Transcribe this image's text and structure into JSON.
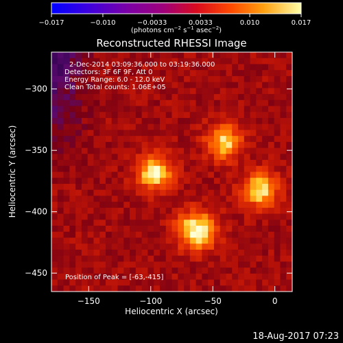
{
  "colorbar": {
    "ticks": [
      "−0.017",
      "−0.010",
      "−0.0033",
      "0.0033",
      "0.010",
      "0.017"
    ],
    "tick_values": [
      -0.017,
      -0.01,
      -0.0033,
      0.0033,
      0.01,
      0.017
    ],
    "range": [
      -0.017,
      0.017
    ],
    "units_main": "(photons cm",
    "units_exp1": "−2",
    "units_mid": " s",
    "units_exp2": "−1",
    "units_tail": " asec",
    "units_exp3": "−2",
    "units_close": ")"
  },
  "chart_data": {
    "type": "heatmap",
    "title": "Reconstructed RHESSI Image",
    "xlabel": "Heliocentric X (arcsec)",
    "ylabel": "Heliocentric Y (arcsec)",
    "xlim": [
      -180,
      14
    ],
    "ylim": [
      -465,
      -270
    ],
    "xticks": [
      -150,
      -100,
      -50,
      0
    ],
    "xtick_labels": [
      "−150",
      "−100",
      "−50",
      "0"
    ],
    "yticks": [
      -300,
      -350,
      -400,
      -450
    ],
    "ytick_labels": [
      "−300",
      "−350",
      "−400",
      "−450"
    ],
    "colormap": "heat",
    "sources": [
      {
        "x": -63,
        "y": -415,
        "intensity": 0.017
      },
      {
        "x": -97,
        "y": -368,
        "intensity": 0.016
      },
      {
        "x": -41,
        "y": -343,
        "intensity": 0.014
      },
      {
        "x": -12,
        "y": -382,
        "intensity": 0.015
      }
    ],
    "annotations": [
      "2-Dec-2014 03:09:36.000 to 03:19:36.000",
      "Detectors: 3F 6F 9F, Att 0",
      "Energy Range: 6.0 - 12.0 keV",
      "Clean     Total counts: 1.06E+05"
    ],
    "peak_label": "Position of Peak = [-63,-415]"
  },
  "footer": {
    "timestamp": "18-Aug-2017 07:23"
  }
}
